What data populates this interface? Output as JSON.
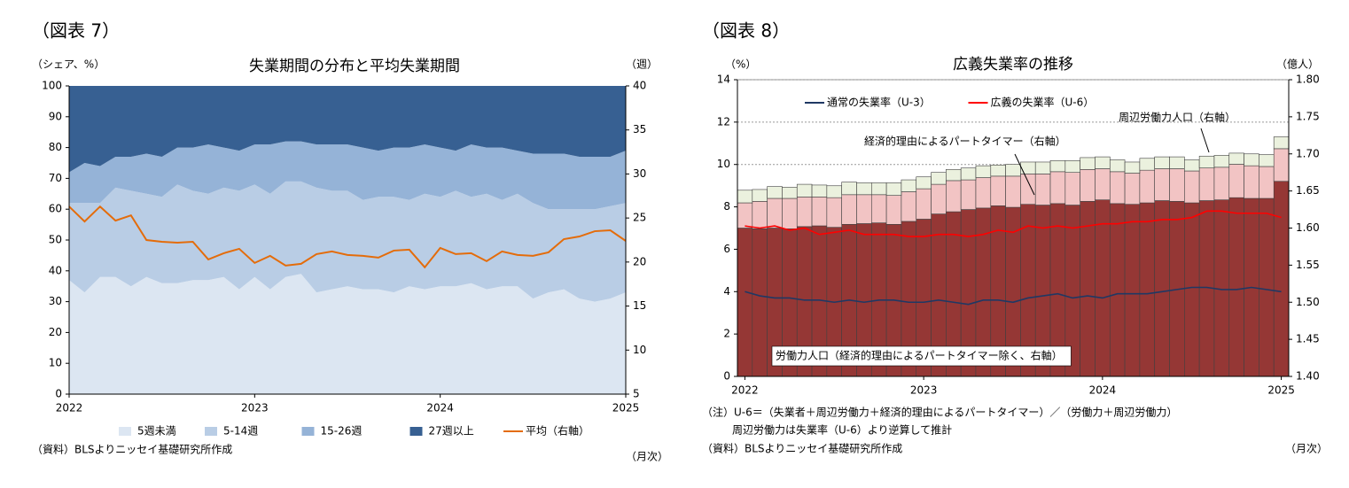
{
  "chart_data": [
    {
      "type": "area",
      "stacked": true,
      "label": "（図表 7）",
      "title": "失業期間の分布と平均失業期間",
      "y_label": "（シェア、%）",
      "y2_label": "（週）",
      "source": "（資料）BLSよりニッセイ基礎研究所作成",
      "x_label": "（月次）",
      "categories": [
        "2022",
        null,
        null,
        null,
        null,
        null,
        null,
        null,
        null,
        null,
        null,
        null,
        "2023",
        null,
        null,
        null,
        null,
        null,
        null,
        null,
        null,
        null,
        null,
        null,
        "2024",
        null,
        null,
        null,
        null,
        null,
        null,
        null,
        null,
        null,
        null,
        null,
        "2025"
      ],
      "ylim": [
        0,
        100
      ],
      "yticks": [
        0,
        10,
        20,
        30,
        40,
        50,
        60,
        70,
        80,
        90,
        100
      ],
      "y2lim": [
        5,
        40
      ],
      "y2ticks": [
        5,
        10,
        15,
        20,
        25,
        30,
        35,
        40
      ],
      "legend": "bottom",
      "series": [
        {
          "name": "5週未満",
          "color": "#dce6f2",
          "values": [
            37,
            33,
            38,
            38,
            35,
            38,
            36,
            36,
            37,
            37,
            38,
            34,
            38,
            34,
            38,
            39,
            33,
            34,
            35,
            34,
            34,
            33,
            35,
            34,
            35,
            35,
            36,
            34,
            35,
            35,
            31,
            33,
            34,
            31,
            30,
            31,
            33
          ]
        },
        {
          "name": "5-14週",
          "color": "#b9cde5",
          "values": [
            25,
            29,
            24,
            29,
            31,
            27,
            28,
            32,
            29,
            28,
            29,
            32,
            30,
            31,
            31,
            30,
            34,
            32,
            31,
            29,
            30,
            31,
            28,
            31,
            29,
            31,
            28,
            31,
            28,
            30,
            31,
            27,
            26,
            29,
            30,
            30,
            29
          ]
        },
        {
          "name": "15-26週",
          "color": "#95b3d7",
          "values": [
            10,
            13,
            12,
            10,
            11,
            13,
            13,
            12,
            14,
            16,
            13,
            13,
            13,
            16,
            13,
            13,
            14,
            15,
            15,
            17,
            15,
            16,
            17,
            16,
            16,
            13,
            17,
            15,
            17,
            14,
            16,
            18,
            18,
            17,
            17,
            16,
            17
          ]
        },
        {
          "name": "27週以上",
          "color": "#376092",
          "values": [
            28,
            25,
            26,
            23,
            23,
            22,
            23,
            20,
            20,
            19,
            20,
            21,
            19,
            19,
            18,
            18,
            19,
            19,
            19,
            20,
            21,
            20,
            20,
            19,
            20,
            21,
            19,
            20,
            20,
            21,
            22,
            22,
            22,
            23,
            23,
            23,
            21
          ]
        },
        {
          "name": "平均（右軸）",
          "color": "#e46c0a",
          "type": "line",
          "axis": "y2",
          "values": [
            26.3,
            24.6,
            26.3,
            24.7,
            25.3,
            22.5,
            22.3,
            22.2,
            22.3,
            20.3,
            21.0,
            21.5,
            19.9,
            20.7,
            19.6,
            19.8,
            20.9,
            21.2,
            20.8,
            20.7,
            20.5,
            21.3,
            21.4,
            19.4,
            21.6,
            20.9,
            21.0,
            20.1,
            21.2,
            20.8,
            20.7,
            21.1,
            22.6,
            22.9,
            23.5,
            23.6,
            22.4
          ]
        }
      ]
    },
    {
      "type": "bar",
      "stacked": true,
      "grid": true,
      "label": "（図表 8）",
      "title": "広義失業率の推移",
      "y_label": "（%）",
      "y2_label": "（億人）",
      "source": "（資料）BLSよりニッセイ基礎研究所作成",
      "x_label": "（月次）",
      "notes": [
        "（注）U-6＝（失業者＋周辺労働力＋経済的理由によるパートタイマー）／（労働力＋周辺労働力）",
        "周辺労働力は失業率（U-6）より逆算して推計"
      ],
      "categories": [
        "2022",
        null,
        null,
        null,
        null,
        null,
        null,
        null,
        null,
        null,
        null,
        null,
        "2023",
        null,
        null,
        null,
        null,
        null,
        null,
        null,
        null,
        null,
        null,
        null,
        "2024",
        null,
        null,
        null,
        null,
        null,
        null,
        null,
        null,
        null,
        null,
        null,
        "2025"
      ],
      "ylim": [
        0,
        14
      ],
      "yticks": [
        0,
        2,
        4,
        6,
        8,
        10,
        12,
        14
      ],
      "y2lim": [
        1.4,
        1.8
      ],
      "y2ticks": [
        {
          "value": 1.4,
          "label": "1.40"
        },
        1.45,
        {
          "value": 1.5,
          "label": "1.50"
        },
        1.55,
        {
          "value": 1.6,
          "label": "1.60"
        },
        1.65,
        {
          "value": 1.7,
          "label": "1.70"
        },
        1.75,
        {
          "value": 1.8,
          "label": "1.80"
        }
      ],
      "legend": "top-left",
      "series": [
        {
          "name": "労働力人口（経済的理由によるパートタイマー除く、右軸）",
          "color": "#953735",
          "axis": "y2",
          "values": [
            1.6,
            1.599,
            1.6,
            1.599,
            1.602,
            1.603,
            1.601,
            1.605,
            1.606,
            1.607,
            1.605,
            1.609,
            1.612,
            1.619,
            1.622,
            1.625,
            1.627,
            1.63,
            1.628,
            1.632,
            1.631,
            1.633,
            1.631,
            1.636,
            1.638,
            1.633,
            1.632,
            1.634,
            1.637,
            1.636,
            1.634,
            1.637,
            1.638,
            1.641,
            1.64,
            1.64,
            1.663
          ]
        },
        {
          "name": "経済的理由によるパートタイマー（右軸）",
          "color": "#f2c4c4",
          "axis": "y2",
          "values": [
            0.034,
            0.037,
            0.04,
            0.041,
            0.04,
            0.039,
            0.04,
            0.04,
            0.039,
            0.038,
            0.039,
            0.04,
            0.041,
            0.04,
            0.042,
            0.04,
            0.041,
            0.04,
            0.042,
            0.041,
            0.042,
            0.043,
            0.044,
            0.043,
            0.042,
            0.043,
            0.042,
            0.044,
            0.043,
            0.044,
            0.043,
            0.044,
            0.044,
            0.045,
            0.044,
            0.043,
            0.044
          ]
        },
        {
          "name": "周辺労働力人口（右軸）",
          "color": "#ebf1de",
          "axis": "y2",
          "values": [
            0.017,
            0.016,
            0.016,
            0.015,
            0.017,
            0.016,
            0.016,
            0.017,
            0.016,
            0.016,
            0.017,
            0.016,
            0.016,
            0.016,
            0.015,
            0.016,
            0.016,
            0.015,
            0.016,
            0.016,
            0.016,
            0.015,
            0.016,
            0.016,
            0.016,
            0.016,
            0.015,
            0.016,
            0.016,
            0.016,
            0.015,
            0.016,
            0.016,
            0.015,
            0.016,
            0.016,
            0.016
          ]
        },
        {
          "name": "通常の失業率（U-3）",
          "color": "#1f3864",
          "type": "line",
          "values": [
            4.0,
            3.8,
            3.7,
            3.7,
            3.6,
            3.6,
            3.5,
            3.6,
            3.5,
            3.6,
            3.6,
            3.5,
            3.5,
            3.6,
            3.5,
            3.4,
            3.6,
            3.6,
            3.5,
            3.7,
            3.8,
            3.9,
            3.7,
            3.8,
            3.7,
            3.9,
            3.9,
            3.9,
            4.0,
            4.1,
            4.2,
            4.2,
            4.1,
            4.1,
            4.2,
            4.1,
            4.0
          ]
        },
        {
          "name": "広義の失業率（U-6）",
          "color": "#ff0000",
          "type": "line",
          "values": [
            7.1,
            7.0,
            7.1,
            6.9,
            7.0,
            6.7,
            6.8,
            6.9,
            6.7,
            6.7,
            6.7,
            6.6,
            6.6,
            6.7,
            6.7,
            6.6,
            6.7,
            6.9,
            6.8,
            7.1,
            7.0,
            7.1,
            7.0,
            7.1,
            7.2,
            7.2,
            7.3,
            7.3,
            7.4,
            7.4,
            7.5,
            7.8,
            7.8,
            7.7,
            7.7,
            7.7,
            7.5
          ]
        }
      ]
    }
  ]
}
